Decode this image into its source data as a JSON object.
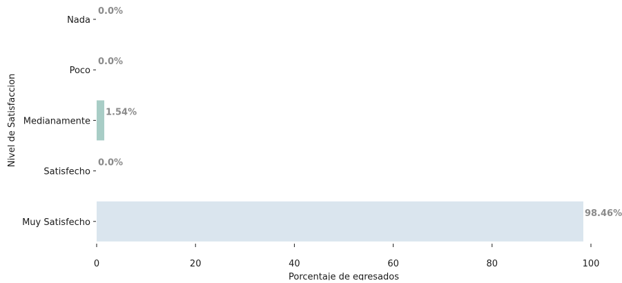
{
  "chart_data": {
    "type": "bar",
    "orientation": "horizontal",
    "categories": [
      "Nada",
      "Poco",
      "Medianamente",
      "Satisfecho",
      "Muy Satisfecho"
    ],
    "values": [
      0.0,
      0.0,
      1.54,
      0.0,
      98.46
    ],
    "data_labels": [
      "0.0%",
      "0.0%",
      "1.54%",
      "0.0%",
      "98.46%"
    ],
    "bar_colors": [
      "#a8cdc6",
      "#a8cdc6",
      "#a8cdc6",
      "#dae5ee",
      "#dae5ee"
    ],
    "label_color": "#8a8a8a",
    "xlabel": "Porcentaje de egresados",
    "ylabel": "Nivel de Satisfaccion",
    "xlim": [
      0,
      100
    ],
    "xticks": [
      0,
      20,
      40,
      60,
      80,
      100
    ],
    "xtick_labels": [
      "0",
      "20",
      "40",
      "60",
      "80",
      "100"
    ],
    "grid": false,
    "title": ""
  }
}
